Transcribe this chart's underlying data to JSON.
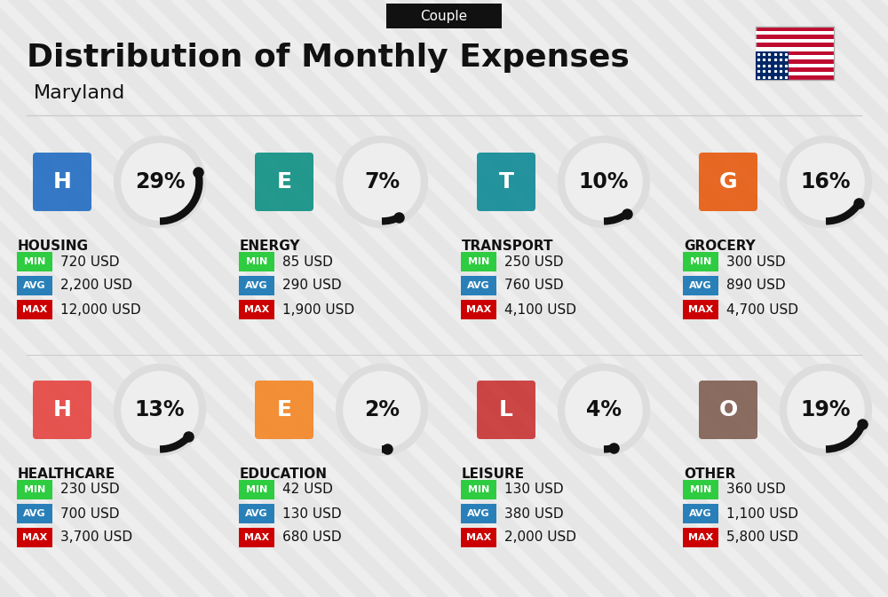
{
  "title": "Distribution of Monthly Expenses",
  "subtitle": "Maryland",
  "badge_text": "Couple",
  "bg_color": "#eeeeee",
  "categories": [
    {
      "name": "HOUSING",
      "pct": 29,
      "min": "720 USD",
      "avg": "2,200 USD",
      "max": "12,000 USD",
      "col": 0,
      "row": 0,
      "icon_color": "#1565c0"
    },
    {
      "name": "ENERGY",
      "pct": 7,
      "min": "85 USD",
      "avg": "290 USD",
      "max": "1,900 USD",
      "col": 1,
      "row": 0,
      "icon_color": "#00897b"
    },
    {
      "name": "TRANSPORT",
      "pct": 10,
      "min": "250 USD",
      "avg": "760 USD",
      "max": "4,100 USD",
      "col": 2,
      "row": 0,
      "icon_color": "#00838f"
    },
    {
      "name": "GROCERY",
      "pct": 16,
      "min": "300 USD",
      "avg": "890 USD",
      "max": "4,700 USD",
      "col": 3,
      "row": 0,
      "icon_color": "#e65100"
    },
    {
      "name": "HEALTHCARE",
      "pct": 13,
      "min": "230 USD",
      "avg": "700 USD",
      "max": "3,700 USD",
      "col": 0,
      "row": 1,
      "icon_color": "#e53935"
    },
    {
      "name": "EDUCATION",
      "pct": 2,
      "min": "42 USD",
      "avg": "130 USD",
      "max": "680 USD",
      "col": 1,
      "row": 1,
      "icon_color": "#f57f17"
    },
    {
      "name": "LEISURE",
      "pct": 4,
      "min": "130 USD",
      "avg": "380 USD",
      "max": "2,000 USD",
      "col": 2,
      "row": 1,
      "icon_color": "#c62828"
    },
    {
      "name": "OTHER",
      "pct": 19,
      "min": "360 USD",
      "avg": "1,100 USD",
      "max": "5,800 USD",
      "col": 3,
      "row": 1,
      "icon_color": "#795548"
    }
  ],
  "min_color": "#2ecc40",
  "avg_color": "#2980b9",
  "max_color": "#cc0000",
  "circle_bg_color": "#dddddd",
  "arc_color": "#111111",
  "text_color": "#111111",
  "title_size": 26,
  "subtitle_size": 16,
  "badge_fontsize": 11,
  "cat_name_size": 11,
  "pct_size": 17,
  "value_size": 11,
  "label_fontsize": 8
}
